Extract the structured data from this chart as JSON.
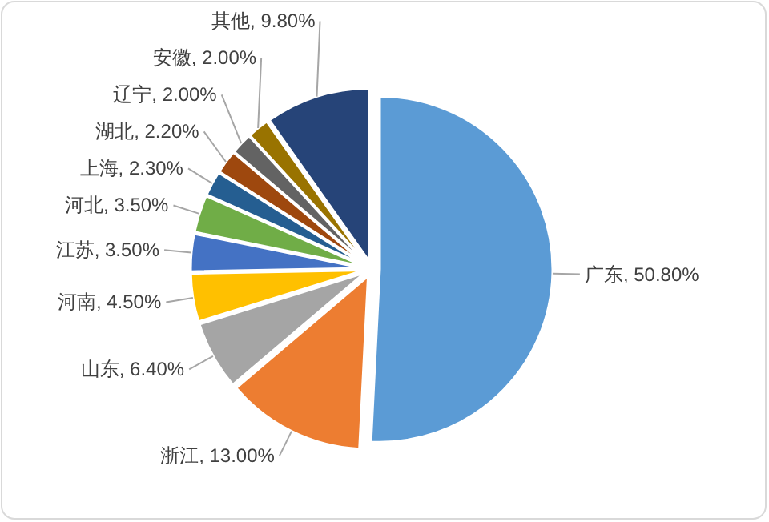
{
  "chart_data": {
    "type": "pie",
    "categories": [
      "广东",
      "浙江",
      "山东",
      "河南",
      "江苏",
      "河北",
      "上海",
      "湖北",
      "辽宁",
      "安徽",
      "其他"
    ],
    "values": [
      50.8,
      13.0,
      6.4,
      4.5,
      3.5,
      3.5,
      2.3,
      2.2,
      2.0,
      2.0,
      9.8
    ],
    "value_labels": [
      "50.80%",
      "13.00%",
      "6.40%",
      "4.50%",
      "3.50%",
      "3.50%",
      "2.30%",
      "2.20%",
      "2.00%",
      "2.00%",
      "9.80%"
    ],
    "colors": [
      "#5b9bd5",
      "#ed7d31",
      "#a5a5a5",
      "#ffc000",
      "#4472c4",
      "#70ad47",
      "#255e91",
      "#9e480e",
      "#636363",
      "#997300",
      "#264478"
    ]
  }
}
